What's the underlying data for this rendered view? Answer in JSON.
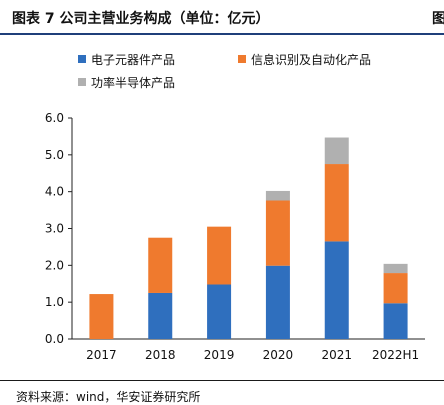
{
  "header": {
    "title": "图表 7 公司主营业务构成（单位：亿元）",
    "title_fragment": "图"
  },
  "footer": {
    "source": "资料来源：wind，华安证券研究所"
  },
  "chart_data": {
    "type": "bar",
    "stacked": true,
    "categories": [
      "2017",
      "2018",
      "2019",
      "2020",
      "2021",
      "2022H1"
    ],
    "series": [
      {
        "name": "电子元器件产品",
        "color": "#2f6fbe",
        "values": [
          0.0,
          1.25,
          1.48,
          1.99,
          2.65,
          0.97
        ]
      },
      {
        "name": "信息识别及自动化产品",
        "color": "#ef7a2e",
        "values": [
          1.22,
          1.5,
          1.57,
          1.77,
          2.1,
          0.82
        ]
      },
      {
        "name": "功率半导体产品",
        "color": "#b0b0b0",
        "values": [
          0.0,
          0.0,
          0.0,
          0.26,
          0.72,
          0.25
        ]
      }
    ],
    "ylim": [
      0,
      6
    ],
    "yticks": [
      "0.0",
      "1.0",
      "2.0",
      "3.0",
      "4.0",
      "5.0",
      "6.0"
    ],
    "grid": false,
    "legend_position": "top-left"
  }
}
